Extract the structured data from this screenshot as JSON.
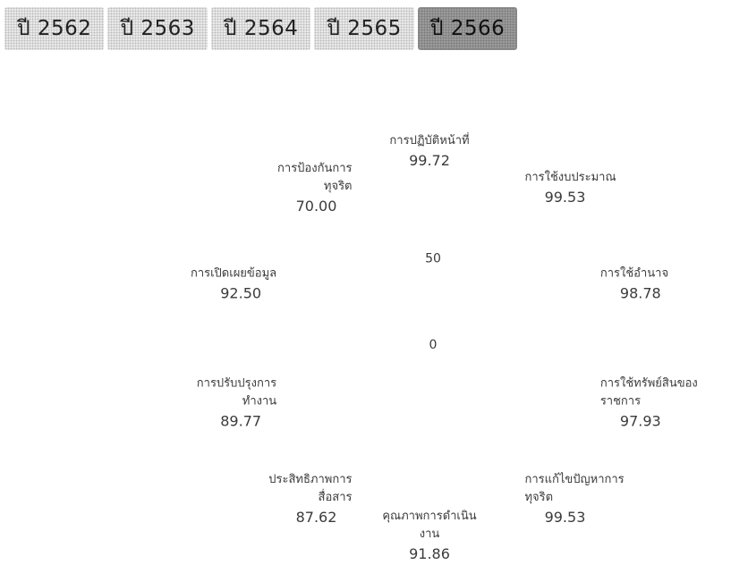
{
  "year_tabs": [
    {
      "label": "ปี 2562"
    },
    {
      "label": "ปี 2563"
    },
    {
      "label": "ปี 2564"
    },
    {
      "label": "ปี 2565"
    },
    {
      "label": "ปี 2566",
      "active": true
    }
  ],
  "chart_data": {
    "type": "radar",
    "title": "",
    "categories": [
      [
        "การปฏิบัติหน้าที่"
      ],
      [
        "การใช้งบประมาณ"
      ],
      [
        "การใช้อำนาจ"
      ],
      [
        "การใช้ทรัพย์สินของ",
        "ราชการ"
      ],
      [
        "การแก้ไขปัญหาการ",
        "ทุจริต"
      ],
      [
        "คุณภาพการดำเนิน",
        "งาน"
      ],
      [
        "ประสิทธิภาพการ",
        "สื่อสาร"
      ],
      [
        "การปรับปรุงการ",
        "ทำงาน"
      ],
      [
        "การเปิดเผยข้อมูล"
      ],
      [
        "การป้องกันการ",
        "ทุจริต"
      ]
    ],
    "values": [
      "99.72",
      "99.53",
      "98.78",
      "97.93",
      "99.53",
      "91.86",
      "87.62",
      "89.77",
      "92.50",
      "70.00"
    ],
    "radial_ticks": [
      "0",
      "50"
    ],
    "range": [
      0,
      100
    ],
    "grid": false,
    "legend": "none"
  }
}
